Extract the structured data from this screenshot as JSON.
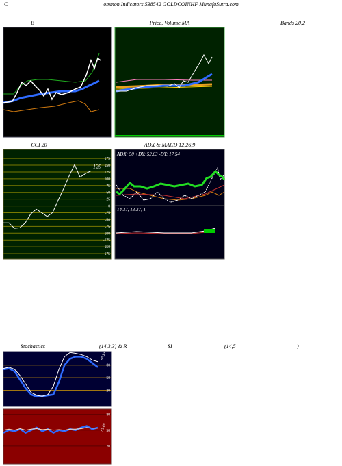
{
  "header": {
    "first_letter": "C",
    "text": "ommon  Indicators 538542  GOLDCOINHF MunafaSutra.com"
  },
  "titles": {
    "bollinger": "B",
    "price": "Price,  Volume  MA",
    "bands": "Bands 20,2",
    "cci": "CCI 20",
    "adx": "ADX  & MACD 12,26,9",
    "stoch": "Stochastics",
    "stoch_params": "(14,3,3) & R",
    "rsi": "SI",
    "rsi_params": "(14,5",
    "rsi_close": ")"
  },
  "adx_macd": {
    "adx_text": "ADX: 50  +DY: 52.63 -DY: 17.54",
    "macd_text": "14.37,  13.37,  1"
  },
  "watermark": "MunafaSutra.com",
  "chart_data": [
    {
      "type": "line",
      "ylim": [
        -195,
        208
      ],
      "yticks": [
        175,
        150,
        125,
        100,
        75,
        50,
        25,
        0,
        -25,
        -50,
        -75,
        -100,
        -125,
        -150,
        -175
      ],
      "series": [
        {
          "color": "#ffffff",
          "values": [
            -62,
            -62,
            -82,
            -80,
            -62,
            -29,
            -12,
            -25,
            -39,
            -24,
            21,
            64,
            110,
            152,
            106,
            119,
            129
          ]
        }
      ]
    },
    {
      "type": "line",
      "ylim": [
        -18,
        112
      ],
      "yticks": [
        80,
        50,
        20
      ],
      "annotation": "67.13",
      "series": [
        {
          "color": "#2f6bff",
          "values": [
            70,
            72,
            65,
            45,
            25,
            10,
            5,
            6,
            8,
            10,
            40,
            80,
            95,
            100,
            100,
            95,
            85,
            75
          ]
        },
        {
          "color": "#ffffff",
          "values": [
            72,
            75,
            70,
            55,
            35,
            15,
            8,
            6,
            10,
            30,
            70,
            100,
            110,
            108,
            105,
            100,
            92,
            88
          ]
        }
      ]
    },
    {
      "type": "line",
      "ylim": [
        -14,
        90
      ],
      "yticks": [
        80,
        50,
        20
      ],
      "annotation": "53.69",
      "series": [
        {
          "color": "#2f6bff",
          "values": [
            45,
            50,
            48,
            52,
            45,
            50,
            55,
            48,
            52,
            45,
            50,
            48,
            52,
            50,
            55,
            58,
            52,
            55
          ]
        },
        {
          "color": "#ffe0c0",
          "values": [
            50,
            52,
            50,
            53,
            50,
            52,
            53,
            51,
            52,
            50,
            51,
            50,
            52,
            52,
            53,
            55,
            54,
            54
          ]
        }
      ]
    }
  ]
}
